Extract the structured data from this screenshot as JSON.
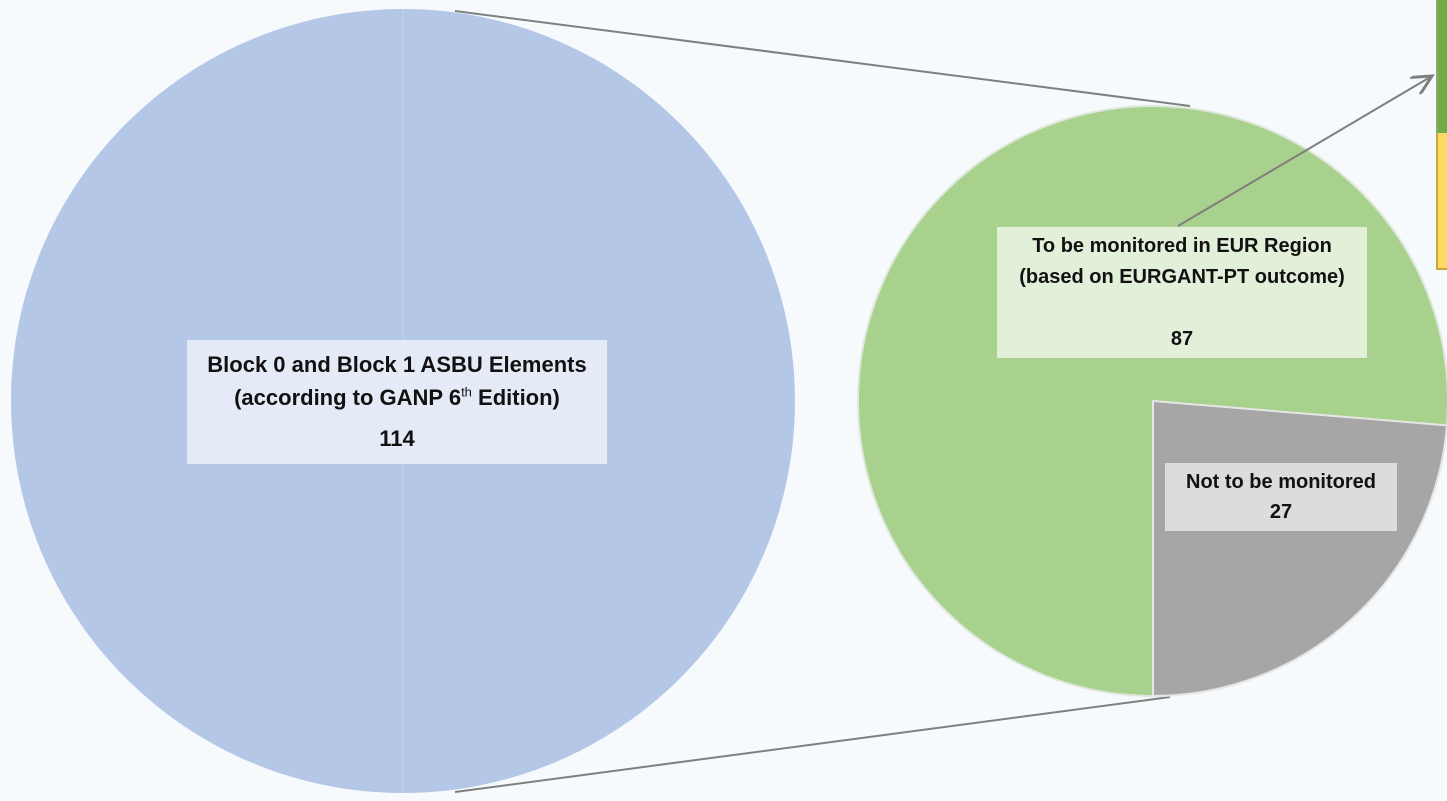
{
  "chart_data": [
    {
      "type": "pie",
      "slices": [
        {
          "label": "Block 0 and Block 1 ASBU Elements (according to GANP 6th Edition)",
          "value": 114
        }
      ],
      "label": {
        "line1": "Block 0 and Block 1 ASBU Elements",
        "line2_pre": "(according to GANP 6",
        "line2_sup": "th",
        "line2_post": " Edition)",
        "value": "114"
      },
      "colors": {
        "fill": "#b4c7e7"
      }
    },
    {
      "type": "pie",
      "slices": [
        {
          "label": "To be monitored in EUR Region (based on EURGANT-PT outcome)",
          "value": 87
        },
        {
          "label": "Not to be monitored",
          "value": 27
        }
      ],
      "label_monitored": {
        "line1": "To be monitored in EUR Region",
        "line2": "(based on EURGANT-PT outcome)",
        "value": "87"
      },
      "label_not_monitored": {
        "line1": "Not to be monitored",
        "value": "27"
      },
      "colors": {
        "monitored": "#a9d18e",
        "not_monitored": "#a6a6a6"
      }
    }
  ],
  "colors": {
    "background": "#f6fafc",
    "connector": "#7f7f7f",
    "legend_green": "#70ad47",
    "legend_yellow": "#ffd966"
  }
}
